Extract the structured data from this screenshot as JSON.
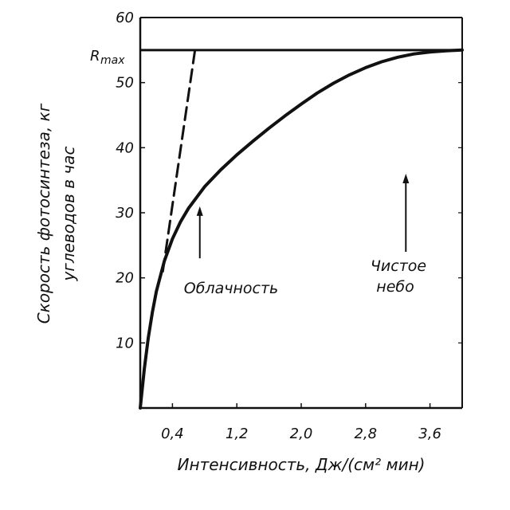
{
  "chart_data": {
    "type": "line",
    "title": "",
    "xlabel": "Интенсивность, Дж/(см² мин)",
    "ylabel_line1": "Скорость фотосинтеза, кг",
    "ylabel_line2": "углеводов в час",
    "xlim": [
      0,
      4.0
    ],
    "ylim": [
      0,
      60
    ],
    "x_ticks": [
      0.4,
      1.2,
      2.0,
      2.8,
      3.6
    ],
    "x_tick_labels": [
      "0,4",
      "1,2",
      "2,0",
      "2,8",
      "3,6"
    ],
    "y_ticks": [
      10,
      20,
      30,
      40,
      50,
      60
    ],
    "y_tick_labels": [
      "10",
      "20",
      "30",
      "40",
      "50",
      "60"
    ],
    "rmax": {
      "label": "R_max",
      "value": 55
    },
    "series": [
      {
        "style": "solid",
        "x": [
          0.0,
          0.05,
          0.1,
          0.15,
          0.2,
          0.3,
          0.4,
          0.5,
          0.6,
          0.8,
          1.0,
          1.2,
          1.4,
          1.6,
          1.8,
          2.0,
          2.2,
          2.4,
          2.6,
          2.8,
          3.0,
          3.2,
          3.4,
          3.6,
          3.8,
          4.0
        ],
        "y": [
          0.0,
          6.0,
          10.8,
          14.7,
          17.9,
          22.6,
          26.0,
          28.6,
          30.7,
          34.0,
          36.6,
          38.9,
          41.0,
          43.0,
          44.9,
          46.7,
          48.4,
          49.9,
          51.2,
          52.3,
          53.2,
          53.9,
          54.4,
          54.7,
          54.9,
          55.0
        ]
      },
      {
        "style": "dashed",
        "x": [
          0.28,
          0.68
        ],
        "y": [
          21,
          55
        ]
      }
    ],
    "annotations": [
      {
        "text": "Облачность",
        "arrow_x": 0.74,
        "arrow_from": 23,
        "arrow_to": 31
      },
      {
        "text_line1": "Чистое",
        "text_line2": "небо",
        "arrow_x": 3.3,
        "arrow_from": 24,
        "arrow_to": 36
      }
    ],
    "grid": false,
    "legend": "none"
  }
}
